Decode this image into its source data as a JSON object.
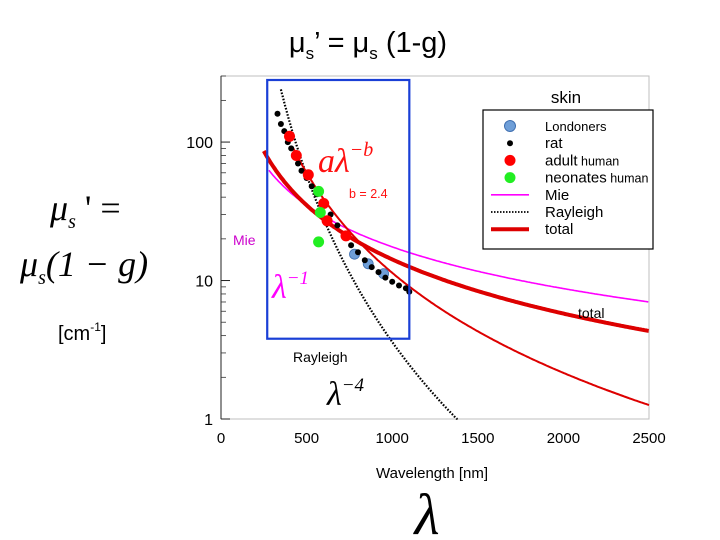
{
  "slide": {
    "title_main": "μ",
    "title_sub": "s",
    "title_prime": "’ = μ",
    "title_sub2": "s",
    "title_rest": " (1-g)",
    "eq_left_mu": "μ",
    "eq_left_s": "s",
    "eq_left_rest": " ' =",
    "eq_right_mu": "μ",
    "eq_right_s": "s",
    "eq_right_rest": "(1 − g)",
    "units_text": "[cm",
    "units_exp": "-1",
    "units_close": "]",
    "lambda_big": "λ"
  },
  "chart_data": {
    "type": "scatter",
    "xlabel": "Wavelength [nm]",
    "ylabel": "",
    "xlim": [
      0,
      2500
    ],
    "ylim": [
      1,
      300
    ],
    "yscale": "log",
    "x_ticks": [
      0,
      500,
      1000,
      1500,
      2000,
      2500
    ],
    "y_ticks": [
      {
        "value": 1,
        "label": "1"
      },
      {
        "value": 10,
        "label": "10"
      },
      {
        "value": 100,
        "label": "100"
      }
    ],
    "legend_title": "skin",
    "legend_placement": "top-right",
    "series": [
      {
        "name": "Londoners",
        "kind": "marker",
        "color": "#6f9fd8",
        "points": [
          [
            780,
            15.5
          ],
          [
            860,
            13.2
          ],
          [
            950,
            11.2
          ]
        ]
      },
      {
        "name": "rat",
        "kind": "marker",
        "color": "#000000",
        "points": [
          [
            330,
            160
          ],
          [
            350,
            135
          ],
          [
            370,
            120
          ],
          [
            390,
            100
          ],
          [
            410,
            90
          ],
          [
            430,
            80
          ],
          [
            450,
            70
          ],
          [
            470,
            62
          ],
          [
            500,
            55
          ],
          [
            530,
            48
          ],
          [
            560,
            42
          ],
          [
            600,
            36
          ],
          [
            640,
            30
          ],
          [
            680,
            25
          ],
          [
            720,
            21
          ],
          [
            760,
            18
          ],
          [
            800,
            16
          ],
          [
            840,
            14
          ],
          [
            880,
            12.5
          ],
          [
            920,
            11.5
          ],
          [
            960,
            10.5
          ],
          [
            1000,
            9.8
          ],
          [
            1040,
            9.2
          ],
          [
            1080,
            8.8
          ],
          [
            1100,
            8.3
          ]
        ]
      },
      {
        "name": "adult",
        "label_suffix": "human",
        "kind": "marker",
        "color": "#ff0000",
        "points": [
          [
            400,
            110
          ],
          [
            440,
            80
          ],
          [
            510,
            58
          ],
          [
            600,
            36
          ],
          [
            620,
            27
          ],
          [
            730,
            21
          ]
        ]
      },
      {
        "name": "neonates",
        "label_suffix": "human",
        "kind": "marker",
        "color": "#22ee22",
        "points": [
          [
            570,
            44
          ],
          [
            580,
            31
          ],
          [
            570,
            19
          ]
        ]
      },
      {
        "name": "Mie",
        "kind": "line",
        "color": "#ff00ff",
        "style": "solid",
        "equation": "35*(x/500)^-1"
      },
      {
        "name": "Rayleigh",
        "kind": "line",
        "color": "#000000",
        "style": "dotted",
        "equation": "x^-4"
      },
      {
        "name": "total",
        "kind": "line",
        "color": "#dd0000",
        "style": "thick",
        "equation": "a*x^-b"
      }
    ],
    "annotations": {
      "fit_a": "a",
      "fit_lambda": "λ",
      "fit_exp": "−b",
      "fit_param": "b = 2.4",
      "mie_label": "Mie",
      "mie_lambda": "λ",
      "mie_exp": "−1",
      "rayleigh_label": "Rayleigh",
      "rayleigh_lambda": "λ",
      "rayleigh_exp": "−4",
      "total_label": "total"
    },
    "colors": {
      "box": "#1a3fd6",
      "mie": "#ff00ff",
      "fit_text": "#ff1010"
    }
  }
}
